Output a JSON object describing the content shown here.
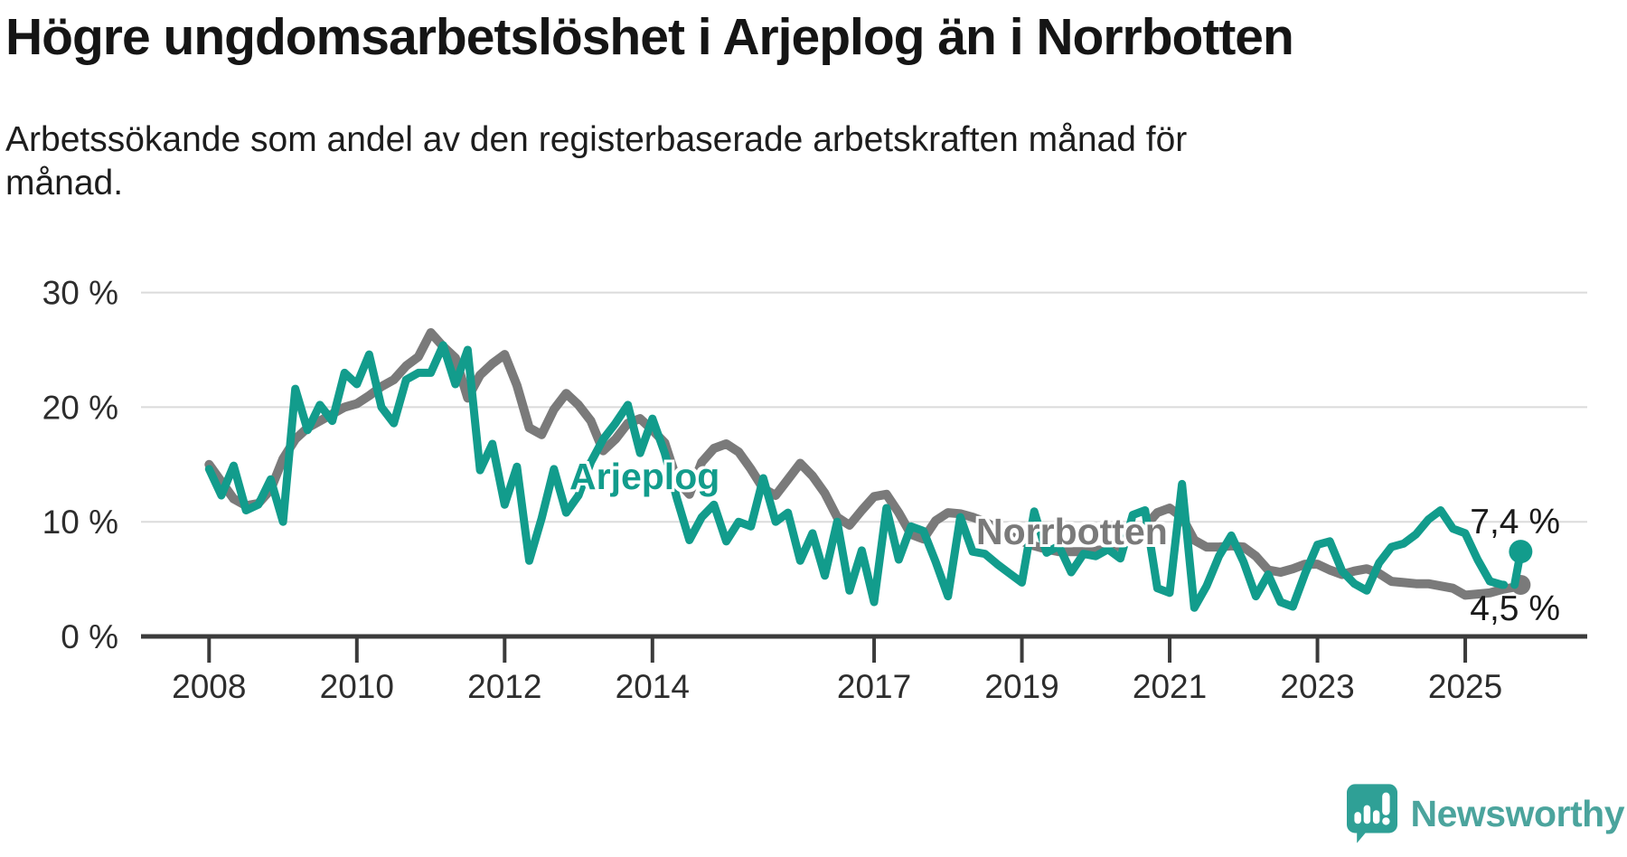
{
  "header": {
    "title": "Högre ungdomsarbetslöshet i Arjeplog än i Norrbotten",
    "subtitle_line1": "Arbetssökande som andel av den registerbaserade arbetskraften månad för",
    "subtitle_line2": "månad."
  },
  "colors": {
    "arjeplog": "#129C8C",
    "norrbotten": "#7A7A7A",
    "grid": "#DBDBDB",
    "axis": "#3B3B3B",
    "annotation_text": "#1A1A1A",
    "brand_teal": "#4BA49D",
    "logo_teal": "#2FA096"
  },
  "annotations": {
    "arjeplog_end": "7,4 %",
    "norrbotten_end": "4,5 %"
  },
  "footer": {
    "brand": "Newsworthy"
  },
  "chart_data": {
    "type": "line",
    "title": "Högre ungdomsarbetslöshet i Arjeplog än i Norrbotten",
    "subtitle": "Arbetssökande som andel av den registerbaserade arbetskraften månad för månad.",
    "unit": "%",
    "grid": true,
    "x_range": [
      2008.0,
      2025.75
    ],
    "ylim": [
      0,
      32
    ],
    "y_ticks": [
      {
        "value": 0,
        "label": "0 %"
      },
      {
        "value": 10,
        "label": "10 %"
      },
      {
        "value": 20,
        "label": "20 %"
      },
      {
        "value": 30,
        "label": "30 %"
      }
    ],
    "x_ticks": [
      {
        "year": 2008,
        "label": "2008"
      },
      {
        "year": 2010,
        "label": "2010"
      },
      {
        "year": 2012,
        "label": "2012"
      },
      {
        "year": 2014,
        "label": "2014"
      },
      {
        "year": 2017,
        "label": "2017"
      },
      {
        "year": 2019,
        "label": "2019"
      },
      {
        "year": 2021,
        "label": "2021"
      },
      {
        "year": 2023,
        "label": "2023"
      },
      {
        "year": 2025,
        "label": "2025"
      }
    ],
    "series": [
      {
        "name": "Norrbotten",
        "color": "#7A7A7A",
        "stroke_width": 10,
        "dot_radius": 11,
        "start_year": 2008,
        "points_per_year": 6,
        "values": [
          15.0,
          13.5,
          12.0,
          11.4,
          11.6,
          12.8,
          15.5,
          17.2,
          18.2,
          18.8,
          19.4,
          20.0,
          20.3,
          21.0,
          21.8,
          22.4,
          23.6,
          24.4,
          26.5,
          25.3,
          24.3,
          20.8,
          22.8,
          23.8,
          24.6,
          21.9,
          18.2,
          17.6,
          19.8,
          21.2,
          20.2,
          18.8,
          16.2,
          17.2,
          18.6,
          19.0,
          18.0,
          16.9,
          13.6,
          12.4,
          15.2,
          16.4,
          16.8,
          16.1,
          14.6,
          12.9,
          12.3,
          13.7,
          15.1,
          14.0,
          12.5,
          10.4,
          9.7,
          11.0,
          12.2,
          12.4,
          10.8,
          8.9,
          8.5,
          10.1,
          10.8,
          10.7,
          10.4,
          10.0,
          9.4,
          8.8,
          8.3,
          7.9,
          7.6,
          7.4,
          7.4,
          7.4,
          7.5,
          7.6,
          7.9,
          8.6,
          9.6,
          10.8,
          11.2,
          10.4,
          8.4,
          7.8,
          7.8,
          7.9,
          7.8,
          7.0,
          5.8,
          5.6,
          5.9,
          6.3,
          6.3,
          5.8,
          5.4,
          5.7,
          5.9,
          5.5,
          4.8,
          4.7,
          4.6,
          4.6,
          4.4,
          4.2,
          3.6,
          3.7,
          3.8,
          4.1,
          4.3
        ],
        "end_point": {
          "t": 2025.75,
          "v": 4.5
        },
        "end_label": "4,5 %"
      },
      {
        "name": "Arjeplog",
        "color": "#129C8C",
        "stroke_width": 9,
        "dot_radius": 13,
        "start_year": 2008,
        "points_per_year": 6,
        "dash_start_index": 104,
        "values": [
          14.6,
          12.3,
          14.9,
          11.0,
          11.5,
          13.7,
          10.0,
          21.6,
          18.0,
          20.2,
          18.8,
          23.0,
          22.0,
          24.6,
          20.0,
          18.6,
          22.4,
          23.0,
          23.0,
          25.4,
          22.0,
          25.0,
          14.5,
          16.8,
          11.5,
          14.8,
          6.6,
          10.3,
          14.6,
          10.8,
          12.3,
          15.2,
          17.2,
          18.6,
          20.2,
          16.0,
          19.0,
          16.0,
          12.0,
          8.4,
          10.4,
          11.5,
          8.3,
          10.0,
          9.6,
          13.8,
          10.0,
          10.8,
          6.6,
          9.0,
          5.3,
          10.0,
          4.0,
          7.5,
          3.0,
          11.2,
          6.7,
          9.6,
          9.2,
          6.5,
          3.5,
          10.4,
          7.4,
          7.2,
          6.3,
          5.5,
          4.7,
          10.9,
          7.3,
          7.9,
          5.6,
          7.2,
          7.0,
          7.6,
          6.8,
          10.6,
          11.0,
          4.2,
          3.8,
          13.3,
          2.5,
          4.4,
          7.0,
          8.8,
          6.5,
          3.5,
          5.4,
          3.0,
          2.6,
          5.5,
          8.0,
          8.3,
          5.7,
          4.6,
          4.0,
          6.4,
          7.8,
          8.1,
          8.9,
          10.2,
          11.0,
          9.4,
          9.0,
          6.7,
          4.8,
          4.5,
          4.5
        ],
        "end_point": {
          "t": 2025.75,
          "v": 7.4
        },
        "end_label": "7,4 %"
      }
    ],
    "legend_position": "inline-labels-on-lines"
  }
}
